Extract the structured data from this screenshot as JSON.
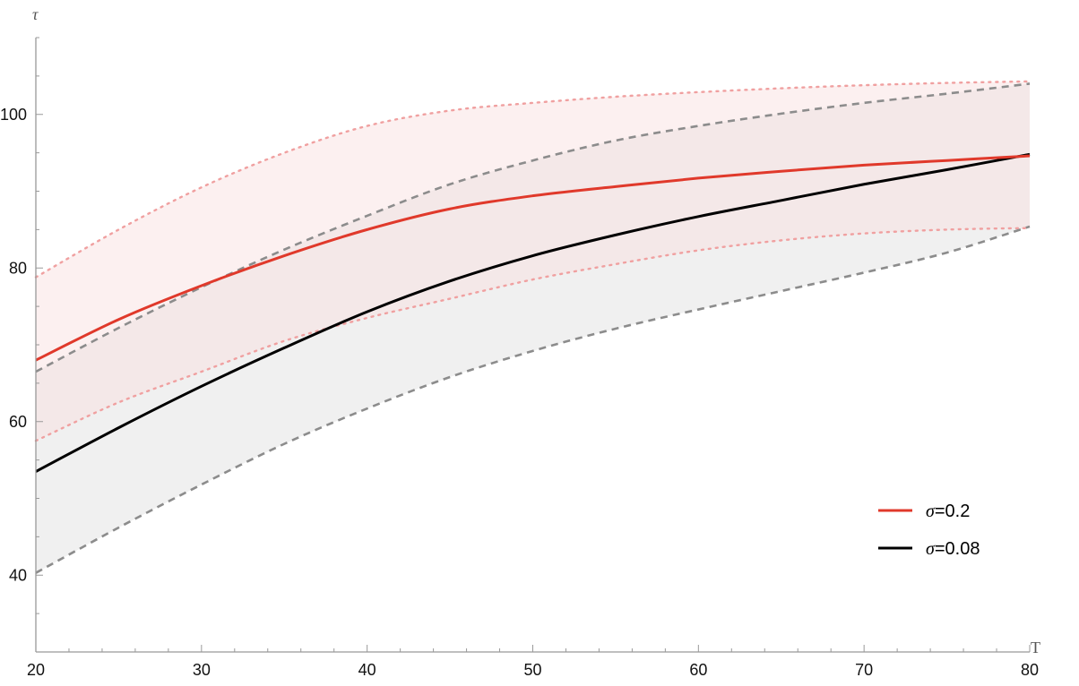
{
  "chart_data": {
    "type": "line",
    "xlabel": "T",
    "ylabel": "τ",
    "xlim": [
      20,
      80
    ],
    "ylim": [
      30,
      110
    ],
    "x_ticks": [
      20,
      30,
      40,
      50,
      60,
      70,
      80
    ],
    "x_tick_labels": [
      "20",
      "30",
      "40",
      "50",
      "60",
      "70",
      "80"
    ],
    "y_ticks": [
      40,
      60,
      80,
      100
    ],
    "y_tick_labels": [
      "40",
      "60",
      "80",
      "100"
    ],
    "grid": false,
    "legend_position": "right",
    "colors": {
      "red": "#e0392b",
      "black": "#000000",
      "red_band_fill": "#f9dede",
      "gray_band_fill": "#efefef",
      "red_dotted": "#f0a0a0",
      "gray_dashed": "#8c8c8c"
    },
    "series": [
      {
        "name_symbol": "σ",
        "name_value": "=0.2",
        "color": "#e0392b",
        "x": [
          20,
          25,
          30,
          35,
          40,
          45,
          50,
          55,
          60,
          65,
          70,
          75,
          80
        ],
        "y": [
          68.0,
          73.3,
          77.7,
          81.6,
          85.0,
          87.7,
          89.4,
          90.6,
          91.7,
          92.6,
          93.4,
          94.0,
          94.6
        ],
        "band_lower": [
          57.5,
          62.5,
          66.5,
          70.5,
          73.5,
          76.0,
          78.5,
          80.5,
          82.3,
          83.6,
          84.5,
          85.0,
          85.2
        ],
        "band_upper": [
          78.8,
          85.0,
          90.5,
          95.0,
          98.5,
          100.5,
          101.5,
          102.3,
          102.9,
          103.4,
          103.8,
          104.1,
          104.3
        ]
      },
      {
        "name_symbol": "σ",
        "name_value": "=0.08",
        "color": "#000000",
        "x": [
          20,
          25,
          30,
          35,
          40,
          45,
          50,
          55,
          60,
          65,
          70,
          75,
          80
        ],
        "y": [
          53.5,
          59.2,
          64.6,
          69.6,
          74.3,
          78.3,
          81.6,
          84.3,
          86.7,
          88.8,
          90.9,
          92.8,
          94.8
        ],
        "band_lower": [
          40.3,
          46.2,
          51.8,
          57.1,
          61.7,
          65.8,
          69.2,
          72.1,
          74.6,
          77.0,
          79.4,
          82.0,
          85.4
        ],
        "band_upper": [
          66.5,
          72.2,
          77.5,
          82.4,
          86.8,
          90.9,
          94.0,
          96.6,
          98.5,
          100.1,
          101.5,
          102.7,
          104.0
        ]
      }
    ]
  }
}
